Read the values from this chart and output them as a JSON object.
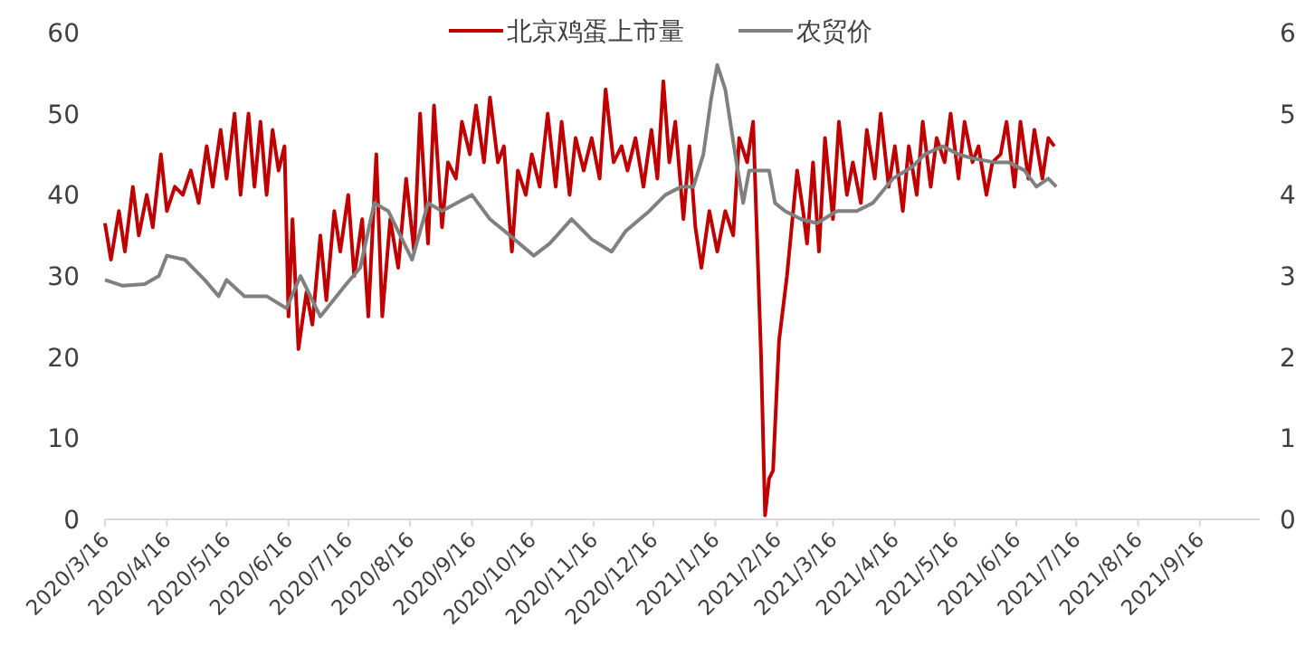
{
  "chart_data": {
    "type": "line",
    "legend": "top",
    "grid": false,
    "marker": "none",
    "line_style": "solid",
    "xlim": [
      "2020-03-16",
      "2021-10-16"
    ],
    "xticks": [
      {
        "value": "2020-03-16",
        "label": "2020/3/16"
      },
      {
        "value": "2020-04-16",
        "label": "2020/4/16"
      },
      {
        "value": "2020-05-16",
        "label": "2020/5/16"
      },
      {
        "value": "2020-06-16",
        "label": "2020/6/16"
      },
      {
        "value": "2020-07-16",
        "label": "2020/7/16"
      },
      {
        "value": "2020-08-16",
        "label": "2020/8/16"
      },
      {
        "value": "2020-09-16",
        "label": "2020/9/16"
      },
      {
        "value": "2020-10-16",
        "label": "2020/10/16"
      },
      {
        "value": "2020-11-16",
        "label": "2020/11/16"
      },
      {
        "value": "2020-12-16",
        "label": "2020/12/16"
      },
      {
        "value": "2021-01-16",
        "label": "2021/1/16"
      },
      {
        "value": "2021-02-16",
        "label": "2021/2/16"
      },
      {
        "value": "2021-03-16",
        "label": "2021/3/16"
      },
      {
        "value": "2021-04-16",
        "label": "2021/4/16"
      },
      {
        "value": "2021-05-16",
        "label": "2021/5/16"
      },
      {
        "value": "2021-06-16",
        "label": "2021/6/16"
      },
      {
        "value": "2021-07-16",
        "label": "2021/7/16"
      },
      {
        "value": "2021-08-16",
        "label": "2021/8/16"
      },
      {
        "value": "2021-09-16",
        "label": "2021/9/16"
      }
    ],
    "ylim": [
      0,
      60
    ],
    "yticks": [
      0,
      10,
      20,
      30,
      40,
      50,
      60
    ],
    "y2lim": [
      0,
      6
    ],
    "y2ticks": [
      0,
      1,
      2,
      3,
      4,
      5,
      6
    ],
    "series": [
      {
        "name": "北京鸡蛋上市量",
        "color": "#c00000",
        "x": [
          "2020-03-16",
          "2020-03-19",
          "2020-03-23",
          "2020-03-26",
          "2020-03-30",
          "2020-04-02",
          "2020-04-06",
          "2020-04-09",
          "2020-04-13",
          "2020-04-16",
          "2020-04-20",
          "2020-04-24",
          "2020-04-28",
          "2020-05-02",
          "2020-05-06",
          "2020-05-09",
          "2020-05-13",
          "2020-05-16",
          "2020-05-20",
          "2020-05-23",
          "2020-05-27",
          "2020-05-30",
          "2020-06-02",
          "2020-06-05",
          "2020-06-08",
          "2020-06-11",
          "2020-06-14",
          "2020-06-16",
          "2020-06-18",
          "2020-06-21",
          "2020-06-25",
          "2020-06-28",
          "2020-07-02",
          "2020-07-05",
          "2020-07-09",
          "2020-07-12",
          "2020-07-16",
          "2020-07-19",
          "2020-07-23",
          "2020-07-26",
          "2020-07-30",
          "2020-08-02",
          "2020-08-06",
          "2020-08-10",
          "2020-08-14",
          "2020-08-18",
          "2020-08-21",
          "2020-08-25",
          "2020-08-28",
          "2020-09-01",
          "2020-09-04",
          "2020-09-08",
          "2020-09-11",
          "2020-09-15",
          "2020-09-18",
          "2020-09-22",
          "2020-09-25",
          "2020-09-29",
          "2020-10-02",
          "2020-10-06",
          "2020-10-09",
          "2020-10-13",
          "2020-10-16",
          "2020-10-20",
          "2020-10-24",
          "2020-10-28",
          "2020-10-31",
          "2020-11-04",
          "2020-11-07",
          "2020-11-11",
          "2020-11-15",
          "2020-11-19",
          "2020-11-22",
          "2020-11-26",
          "2020-11-30",
          "2020-12-03",
          "2020-12-07",
          "2020-12-11",
          "2020-12-15",
          "2020-12-18",
          "2020-12-21",
          "2020-12-24",
          "2020-12-27",
          "2020-12-31",
          "2021-01-03",
          "2021-01-06",
          "2021-01-09",
          "2021-01-13",
          "2021-01-17",
          "2021-01-21",
          "2021-01-25",
          "2021-01-28",
          "2021-02-01",
          "2021-02-04",
          "2021-02-08",
          "2021-02-10",
          "2021-02-12",
          "2021-02-14",
          "2021-02-17",
          "2021-02-21",
          "2021-02-26",
          "2021-03-01",
          "2021-03-03",
          "2021-03-06",
          "2021-03-09",
          "2021-03-12",
          "2021-03-16",
          "2021-03-19",
          "2021-03-23",
          "2021-03-26",
          "2021-03-30",
          "2021-04-02",
          "2021-04-06",
          "2021-04-09",
          "2021-04-13",
          "2021-04-16",
          "2021-04-20",
          "2021-04-23",
          "2021-04-27",
          "2021-04-30",
          "2021-05-04",
          "2021-05-07",
          "2021-05-11",
          "2021-05-14",
          "2021-05-18",
          "2021-05-21",
          "2021-05-25",
          "2021-05-28",
          "2021-06-01",
          "2021-06-04",
          "2021-06-08",
          "2021-06-11",
          "2021-06-15",
          "2021-06-18",
          "2021-06-22",
          "2021-06-25",
          "2021-06-29",
          "2021-07-02",
          "2021-07-05"
        ],
        "values": [
          36.5,
          32,
          38,
          33,
          41,
          35,
          40,
          36,
          45,
          38,
          41,
          40,
          43,
          39,
          46,
          41,
          48,
          42,
          50,
          40,
          50,
          41,
          49,
          40,
          48,
          43,
          46,
          25,
          37,
          21,
          28,
          24,
          35,
          27,
          38,
          33,
          40,
          30,
          37,
          25,
          45,
          25,
          37,
          31,
          42,
          33,
          50,
          34,
          51,
          36,
          44,
          42,
          49,
          45,
          51,
          44,
          52,
          44,
          46,
          33,
          43,
          40,
          45,
          41,
          50,
          41,
          49,
          40,
          47,
          43,
          47,
          42,
          53,
          44,
          46,
          43,
          47,
          41,
          48,
          42,
          54,
          44,
          49,
          37,
          46,
          36,
          31,
          38,
          33,
          38,
          35,
          47,
          44,
          49,
          20,
          0.5,
          5,
          6,
          22,
          30,
          43,
          38,
          34,
          44,
          33,
          47,
          37,
          49,
          40,
          44,
          39,
          48,
          42,
          50,
          41,
          46,
          38,
          46,
          40,
          49,
          41,
          47,
          44,
          50,
          42,
          49,
          44,
          46,
          40,
          44,
          45,
          49,
          41,
          49,
          42,
          48,
          42,
          47,
          46
        ]
      },
      {
        "name": "农贸价",
        "color": "#808080",
        "axis": "y2",
        "x": [
          "2020-03-16",
          "2020-03-25",
          "2020-04-05",
          "2020-04-12",
          "2020-04-16",
          "2020-04-25",
          "2020-05-05",
          "2020-05-12",
          "2020-05-16",
          "2020-05-25",
          "2020-06-05",
          "2020-06-15",
          "2020-06-22",
          "2020-07-02",
          "2020-07-15",
          "2020-07-22",
          "2020-07-29",
          "2020-08-05",
          "2020-08-17",
          "2020-08-25",
          "2020-09-01",
          "2020-09-16",
          "2020-09-25",
          "2020-10-05",
          "2020-10-17",
          "2020-10-25",
          "2020-11-05",
          "2020-11-15",
          "2020-11-25",
          "2020-12-02",
          "2020-12-14",
          "2020-12-22",
          "2020-12-30",
          "2021-01-05",
          "2021-01-10",
          "2021-01-14",
          "2021-01-17",
          "2021-01-21",
          "2021-01-26",
          "2021-01-30",
          "2021-02-02",
          "2021-02-08",
          "2021-02-12",
          "2021-02-15",
          "2021-02-20",
          "2021-02-28",
          "2021-03-08",
          "2021-03-18",
          "2021-03-28",
          "2021-04-05",
          "2021-04-15",
          "2021-04-25",
          "2021-05-01",
          "2021-05-10",
          "2021-05-18",
          "2021-05-25",
          "2021-06-05",
          "2021-06-12",
          "2021-06-20",
          "2021-06-26",
          "2021-07-02",
          "2021-07-06"
        ],
        "values": [
          2.95,
          2.88,
          2.9,
          3.0,
          3.25,
          3.2,
          2.95,
          2.75,
          2.95,
          2.75,
          2.75,
          2.6,
          3.0,
          2.5,
          2.9,
          3.1,
          3.9,
          3.8,
          3.2,
          3.9,
          3.8,
          4.0,
          3.7,
          3.5,
          3.25,
          3.4,
          3.7,
          3.45,
          3.3,
          3.55,
          3.8,
          4.0,
          4.1,
          4.1,
          4.5,
          5.2,
          5.6,
          5.3,
          4.5,
          3.9,
          4.3,
          4.3,
          4.3,
          3.9,
          3.8,
          3.7,
          3.65,
          3.8,
          3.8,
          3.9,
          4.2,
          4.35,
          4.5,
          4.6,
          4.5,
          4.45,
          4.4,
          4.4,
          4.3,
          4.1,
          4.2,
          4.1
        ]
      }
    ]
  }
}
